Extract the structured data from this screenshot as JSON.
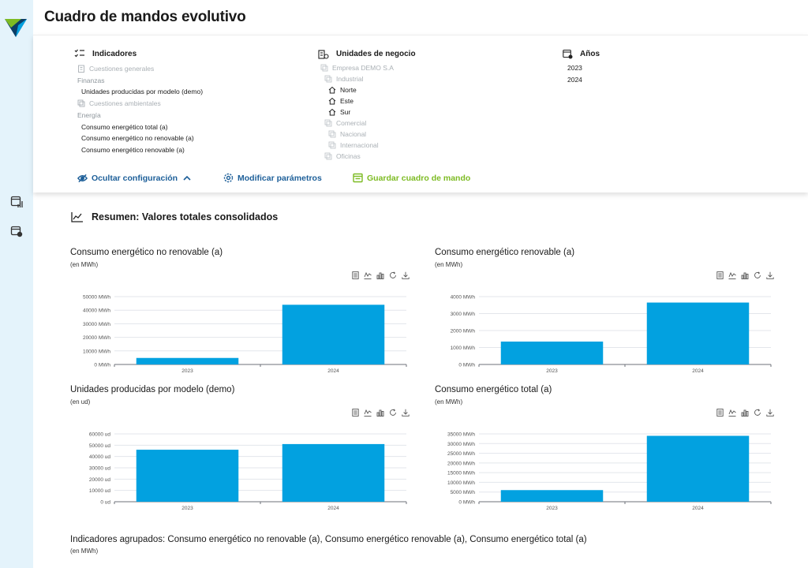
{
  "header": {
    "title": "Cuadro de mandos evolutivo"
  },
  "rail": {
    "icons": [
      "dashboard-chart-icon",
      "calendar-clock-icon"
    ]
  },
  "config": {
    "indicators": {
      "heading": "Indicadores",
      "items": [
        {
          "label": "Cuestiones generales",
          "style": "muted",
          "icon": "building-icon"
        },
        {
          "label": "Finanzas",
          "style": "group"
        },
        {
          "label": "Unidades producidas por modelo (demo)",
          "style": "active"
        },
        {
          "label": "Cuestiones ambientales",
          "style": "muted",
          "icon": "leaf-icon"
        },
        {
          "label": "Energía",
          "style": "group"
        },
        {
          "label": "Consumo energético total (a)",
          "style": "active"
        },
        {
          "label": "Consumo energético no renovable (a)",
          "style": "active"
        },
        {
          "label": "Consumo energético renovable (a)",
          "style": "active"
        }
      ]
    },
    "business_units": {
      "heading": "Unidades de negocio",
      "items": [
        {
          "label": "Empresa DEMO S.A",
          "style": "muted",
          "indent": 0
        },
        {
          "label": "Industrial",
          "style": "muted",
          "indent": 1
        },
        {
          "label": "Norte",
          "style": "active",
          "indent": 2
        },
        {
          "label": "Este",
          "style": "active",
          "indent": 2
        },
        {
          "label": "Sur",
          "style": "active",
          "indent": 2
        },
        {
          "label": "Comercial",
          "style": "muted",
          "indent": 1
        },
        {
          "label": "Nacional",
          "style": "muted",
          "indent": 2
        },
        {
          "label": "Internacional",
          "style": "muted",
          "indent": 2
        },
        {
          "label": "Oficinas",
          "style": "muted",
          "indent": 1
        }
      ]
    },
    "years": {
      "heading": "Años",
      "items": [
        "2023",
        "2024"
      ]
    },
    "actions": {
      "hide_config": "Ocultar configuración",
      "modify_params": "Modificar parámetros",
      "save_dashboard": "Guardar cuadro de mando"
    },
    "colors": {
      "blue_action": "#1d5f99",
      "green_action": "#7dbb23"
    }
  },
  "summary": {
    "title": "Resumen: Valores totales consolidados"
  },
  "chart_data": [
    {
      "type": "bar",
      "title": "Consumo energético no renovable (a)",
      "unit_label": "(en MWh)",
      "categories": [
        "2023",
        "2024"
      ],
      "values": [
        4800,
        44000
      ],
      "ylim": [
        0,
        50000
      ],
      "yticks": [
        0,
        10000,
        20000,
        30000,
        40000,
        50000
      ],
      "tick_suffix": " MWh",
      "color": "#02a1e0"
    },
    {
      "type": "bar",
      "title": "Consumo energético renovable (a)",
      "unit_label": "(en MWh)",
      "categories": [
        "2023",
        "2024"
      ],
      "values": [
        1350,
        3650
      ],
      "ylim": [
        0,
        4000
      ],
      "yticks": [
        0,
        1000,
        2000,
        3000,
        4000
      ],
      "tick_suffix": " MWh",
      "color": "#02a1e0"
    },
    {
      "type": "bar",
      "title": "Unidades producidas por modelo (demo)",
      "unit_label": "(en ud)",
      "categories": [
        "2023",
        "2024"
      ],
      "values": [
        46000,
        51000
      ],
      "ylim": [
        0,
        60000
      ],
      "yticks": [
        0,
        10000,
        20000,
        30000,
        40000,
        50000,
        60000
      ],
      "tick_suffix": " ud",
      "color": "#02a1e0"
    },
    {
      "type": "bar",
      "title": "Consumo energético total (a)",
      "unit_label": "(en MWh)",
      "categories": [
        "2023",
        "2024"
      ],
      "values": [
        6000,
        34000
      ],
      "ylim": [
        0,
        35000
      ],
      "yticks": [
        0,
        5000,
        10000,
        15000,
        20000,
        25000,
        30000,
        35000
      ],
      "tick_suffix": " MWh",
      "color": "#02a1e0"
    }
  ],
  "chart_tools": [
    "data-view-icon",
    "line-chart-icon",
    "bar-chart-icon",
    "restore-icon",
    "download-icon"
  ],
  "grouped": {
    "title": "Indicadores agrupados: Consumo energético no renovable (a), Consumo energético renovable (a), Consumo energético total (a)",
    "unit_label": "(en MWh)"
  }
}
